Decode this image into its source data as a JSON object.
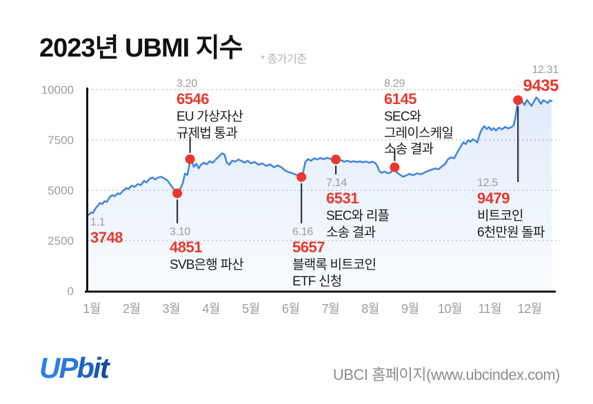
{
  "header": {
    "title": "2023년 UBMI 지수",
    "subtitle": "* 종가기준"
  },
  "footer": {
    "logo_text": "UPbit",
    "logo_colors": [
      "#2e7ee3",
      "#2a76da",
      "#1e63c2",
      "#1656ae",
      "#0f4a9d"
    ],
    "source": "UBCI 홈페이지(www.ubcindex.com)"
  },
  "colors": {
    "line": "#4286e0",
    "area_top": "rgba(66,134,224,0.16)",
    "area_bottom": "rgba(66,134,224,0.03)",
    "dot": "#e8382c",
    "connector": "#333333",
    "grid": "#c6c6c6",
    "axis": "#111111",
    "tick_label": "#9c9c9c"
  },
  "chart_data": {
    "type": "line",
    "title": "2023년 UBMI 지수 (UBMI index, 2023, closing prices)",
    "xlabel": "month",
    "ylabel": "UBMI index",
    "ylim": [
      0,
      10000
    ],
    "y_ticks": [
      0,
      2500,
      5000,
      7500,
      10000
    ],
    "x_tick_labels": [
      "1월",
      "2월",
      "3월",
      "4월",
      "5월",
      "6월",
      "7월",
      "8월",
      "9월",
      "10월",
      "11월",
      "12월"
    ],
    "x_domain_note": "x encoded as month fraction: 1.0 = Jan 1, 13.0 = Dec 31",
    "grid": "dotted horizontal",
    "legend": "none",
    "points": [
      [
        1.0,
        3748
      ],
      [
        1.05,
        3820
      ],
      [
        1.1,
        3900
      ],
      [
        1.14,
        3870
      ],
      [
        1.2,
        4080
      ],
      [
        1.26,
        4230
      ],
      [
        1.32,
        4370
      ],
      [
        1.38,
        4310
      ],
      [
        1.44,
        4460
      ],
      [
        1.5,
        4420
      ],
      [
        1.58,
        4680
      ],
      [
        1.64,
        4760
      ],
      [
        1.7,
        4710
      ],
      [
        1.78,
        4850
      ],
      [
        1.84,
        4810
      ],
      [
        1.92,
        4980
      ],
      [
        2.0,
        5110
      ],
      [
        2.06,
        5060
      ],
      [
        2.14,
        5230
      ],
      [
        2.22,
        5170
      ],
      [
        2.3,
        5310
      ],
      [
        2.38,
        5260
      ],
      [
        2.46,
        5470
      ],
      [
        2.52,
        5390
      ],
      [
        2.6,
        5560
      ],
      [
        2.68,
        5640
      ],
      [
        2.74,
        5540
      ],
      [
        2.82,
        5630
      ],
      [
        2.9,
        5670
      ],
      [
        2.98,
        5590
      ],
      [
        3.06,
        5500
      ],
      [
        3.14,
        5290
      ],
      [
        3.22,
        5080
      ],
      [
        3.28,
        4960
      ],
      [
        3.32,
        4851
      ],
      [
        3.4,
        5080
      ],
      [
        3.46,
        5350
      ],
      [
        3.52,
        5830
      ],
      [
        3.58,
        5760
      ],
      [
        3.63,
        6250
      ],
      [
        3.65,
        6546
      ],
      [
        3.7,
        6400
      ],
      [
        3.75,
        6160
      ],
      [
        3.81,
        6330
      ],
      [
        3.87,
        6090
      ],
      [
        3.93,
        6270
      ],
      [
        4.0,
        6370
      ],
      [
        4.08,
        6290
      ],
      [
        4.16,
        6440
      ],
      [
        4.24,
        6370
      ],
      [
        4.32,
        6540
      ],
      [
        4.4,
        6690
      ],
      [
        4.48,
        6840
      ],
      [
        4.54,
        6780
      ],
      [
        4.6,
        6380
      ],
      [
        4.67,
        6270
      ],
      [
        4.74,
        6480
      ],
      [
        4.82,
        6420
      ],
      [
        4.9,
        6530
      ],
      [
        4.98,
        6460
      ],
      [
        5.06,
        6370
      ],
      [
        5.14,
        6470
      ],
      [
        5.22,
        6340
      ],
      [
        5.32,
        6410
      ],
      [
        5.42,
        6270
      ],
      [
        5.52,
        6340
      ],
      [
        5.62,
        6210
      ],
      [
        5.72,
        6290
      ],
      [
        5.82,
        6140
      ],
      [
        5.92,
        6240
      ],
      [
        6.02,
        6130
      ],
      [
        6.12,
        5970
      ],
      [
        6.22,
        5890
      ],
      [
        6.32,
        5830
      ],
      [
        6.42,
        5760
      ],
      [
        6.53,
        5657
      ],
      [
        6.58,
        5920
      ],
      [
        6.63,
        6400
      ],
      [
        6.7,
        6550
      ],
      [
        6.78,
        6470
      ],
      [
        6.86,
        6590
      ],
      [
        6.94,
        6530
      ],
      [
        7.02,
        6610
      ],
      [
        7.1,
        6540
      ],
      [
        7.2,
        6620
      ],
      [
        7.3,
        6540
      ],
      [
        7.38,
        6460
      ],
      [
        7.42,
        6531
      ],
      [
        7.48,
        6440
      ],
      [
        7.56,
        6490
      ],
      [
        7.64,
        6420
      ],
      [
        7.72,
        6470
      ],
      [
        7.8,
        6400
      ],
      [
        7.88,
        6450
      ],
      [
        7.96,
        6400
      ],
      [
        8.04,
        6440
      ],
      [
        8.12,
        6390
      ],
      [
        8.2,
        6430
      ],
      [
        8.28,
        6370
      ],
      [
        8.36,
        6420
      ],
      [
        8.44,
        6360
      ],
      [
        8.5,
        6180
      ],
      [
        8.54,
        5960
      ],
      [
        8.6,
        5870
      ],
      [
        8.68,
        5930
      ],
      [
        8.76,
        5850
      ],
      [
        8.84,
        5890
      ],
      [
        8.94,
        6145
      ],
      [
        9.0,
        5880
      ],
      [
        9.08,
        5770
      ],
      [
        9.16,
        5670
      ],
      [
        9.24,
        5740
      ],
      [
        9.32,
        5810
      ],
      [
        9.42,
        5750
      ],
      [
        9.52,
        5840
      ],
      [
        9.62,
        5790
      ],
      [
        9.72,
        5890
      ],
      [
        9.82,
        5970
      ],
      [
        9.92,
        6040
      ],
      [
        10.0,
        6090
      ],
      [
        10.08,
        6040
      ],
      [
        10.16,
        6190
      ],
      [
        10.24,
        6290
      ],
      [
        10.32,
        6540
      ],
      [
        10.4,
        6640
      ],
      [
        10.48,
        6590
      ],
      [
        10.56,
        6890
      ],
      [
        10.64,
        7140
      ],
      [
        10.72,
        7390
      ],
      [
        10.78,
        7290
      ],
      [
        10.84,
        7490
      ],
      [
        10.9,
        7410
      ],
      [
        10.96,
        7540
      ],
      [
        11.02,
        7470
      ],
      [
        11.08,
        7370
      ],
      [
        11.14,
        7790
      ],
      [
        11.2,
        8040
      ],
      [
        11.26,
        8190
      ],
      [
        11.32,
        8040
      ],
      [
        11.38,
        8140
      ],
      [
        11.44,
        7990
      ],
      [
        11.5,
        8090
      ],
      [
        11.56,
        7970
      ],
      [
        11.64,
        8110
      ],
      [
        11.72,
        8030
      ],
      [
        11.8,
        8150
      ],
      [
        11.88,
        8070
      ],
      [
        11.96,
        8140
      ],
      [
        12.02,
        8240
      ],
      [
        12.06,
        8580
      ],
      [
        12.1,
        9080
      ],
      [
        12.13,
        9479
      ],
      [
        12.18,
        9550
      ],
      [
        12.24,
        9390
      ],
      [
        12.3,
        9240
      ],
      [
        12.36,
        9490
      ],
      [
        12.42,
        9340
      ],
      [
        12.48,
        9190
      ],
      [
        12.54,
        9390
      ],
      [
        12.6,
        9610
      ],
      [
        12.66,
        9510
      ],
      [
        12.72,
        9290
      ],
      [
        12.78,
        9470
      ],
      [
        12.84,
        9410
      ],
      [
        12.9,
        9340
      ],
      [
        12.96,
        9470
      ],
      [
        13.0,
        9435
      ]
    ],
    "events": [
      {
        "date": "1.1",
        "value": 3748,
        "month": 1.0,
        "dot": false,
        "desc_lines": []
      },
      {
        "date": "3.10",
        "value": 4851,
        "month": 3.32,
        "dot": true,
        "connector_to_y": 324,
        "desc_lines": [
          "SVB은행 파산"
        ]
      },
      {
        "date": "3.20",
        "value": 6546,
        "month": 3.65,
        "dot": true,
        "connector_to_y": 198,
        "desc_lines": [
          "EU 가상자산",
          "규제법 통과"
        ]
      },
      {
        "date": "6.16",
        "value": 5657,
        "month": 6.53,
        "dot": true,
        "connector_to_y": 324,
        "desc_lines": [
          "블랙록 비트코인",
          "ETF 신청"
        ]
      },
      {
        "date": "7.14",
        "value": 6531,
        "month": 7.42,
        "dot": true,
        "connector_to_y": 253,
        "desc_lines": [
          "SEC와 리플",
          "소송 결과"
        ]
      },
      {
        "date": "8.29",
        "value": 6145,
        "month": 8.94,
        "dot": true,
        "connector_to_y": 216,
        "desc_lines": [
          "SEC와",
          "그레이스케일",
          "소송 결과"
        ]
      },
      {
        "date": "12.5",
        "value": 9479,
        "month": 12.13,
        "dot": true,
        "connector_to_y": 264,
        "desc_lines": [
          "비트코인",
          "6천만원 돌파"
        ]
      },
      {
        "date": "12.31",
        "value": 9435,
        "month": 13.0,
        "dot": false,
        "desc_lines": []
      }
    ]
  }
}
